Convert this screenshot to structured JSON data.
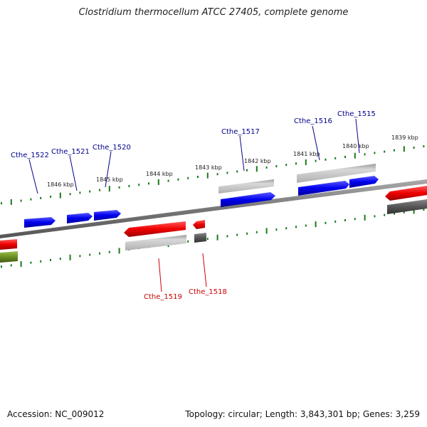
{
  "title": "Clostridium thermocellum ATCC 27405, complete genome",
  "footer": {
    "accession": "Accession: NC_009012",
    "summary": "Topology: circular; Length: 3,843,301 bp; Genes: 3,259"
  },
  "colors": {
    "backbone": "#7a7a7a",
    "tick": "#1a7a1a",
    "forward_cds": "#0000ee",
    "reverse_cds": "#ee0000",
    "forward_other": "#a8a8a8",
    "reverse_other": "#555555",
    "olive": "#6b8e23",
    "forward_label": "#00008b",
    "reverse_label": "#cc0000"
  },
  "ticks": [
    {
      "label": "1846 kbp"
    },
    {
      "label": "1845 kbp"
    },
    {
      "label": "1844 kbp"
    },
    {
      "label": "1843 kbp"
    },
    {
      "label": "1842 kbp"
    },
    {
      "label": "1841 kbp"
    },
    {
      "label": "1840 kbp"
    },
    {
      "label": "1839 kbp"
    }
  ],
  "gene_labels": [
    {
      "text": "Cthe_1522",
      "strand": "forward"
    },
    {
      "text": "Cthe_1521",
      "strand": "forward"
    },
    {
      "text": "Cthe_1520",
      "strand": "forward"
    },
    {
      "text": "Cthe_1517",
      "strand": "forward"
    },
    {
      "text": "Cthe_1516",
      "strand": "forward"
    },
    {
      "text": "Cthe_1515",
      "strand": "forward"
    },
    {
      "text": "Cthe_1519",
      "strand": "reverse"
    },
    {
      "text": "Cthe_1518",
      "strand": "reverse"
    }
  ]
}
